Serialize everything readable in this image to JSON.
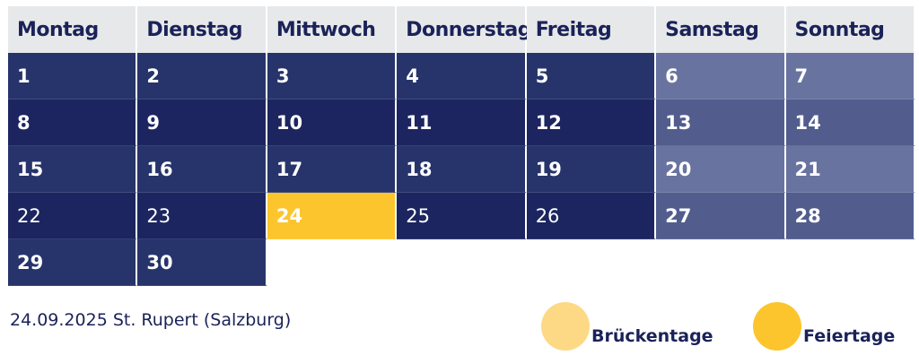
{
  "weekdays": [
    "Montag",
    "Dienstag",
    "Mittwoch",
    "Donnerstag",
    "Freitag",
    "Samstag",
    "Sonntag"
  ],
  "days": {
    "d1": "1",
    "d2": "2",
    "d3": "3",
    "d4": "4",
    "d5": "5",
    "d6": "6",
    "d7": "7",
    "d8": "8",
    "d9": "9",
    "d10": "10",
    "d11": "11",
    "d12": "12",
    "d13": "13",
    "d14": "14",
    "d15": "15",
    "d16": "16",
    "d17": "17",
    "d18": "18",
    "d19": "19",
    "d20": "20",
    "d21": "21",
    "d22": "22",
    "d23": "23",
    "d24": "24",
    "d25": "25",
    "d26": "26",
    "d27": "27",
    "d28": "28",
    "d29": "29",
    "d30": "30"
  },
  "holiday_note": "24.09.2025 St. Rupert (Salzburg)",
  "legend": {
    "bridge_days": "Brückentage",
    "holidays": "Feiertage"
  },
  "colors": {
    "header_bg": "#e7e8ea",
    "weekday_dark": "#1c2560",
    "weekday_mid": "#27346b",
    "weekend_light": "#6873a0",
    "weekend_mid": "#525d8e",
    "holiday": "#fcc52e",
    "bridge_day": "#fdd985",
    "text_dark": "#1a2258"
  }
}
